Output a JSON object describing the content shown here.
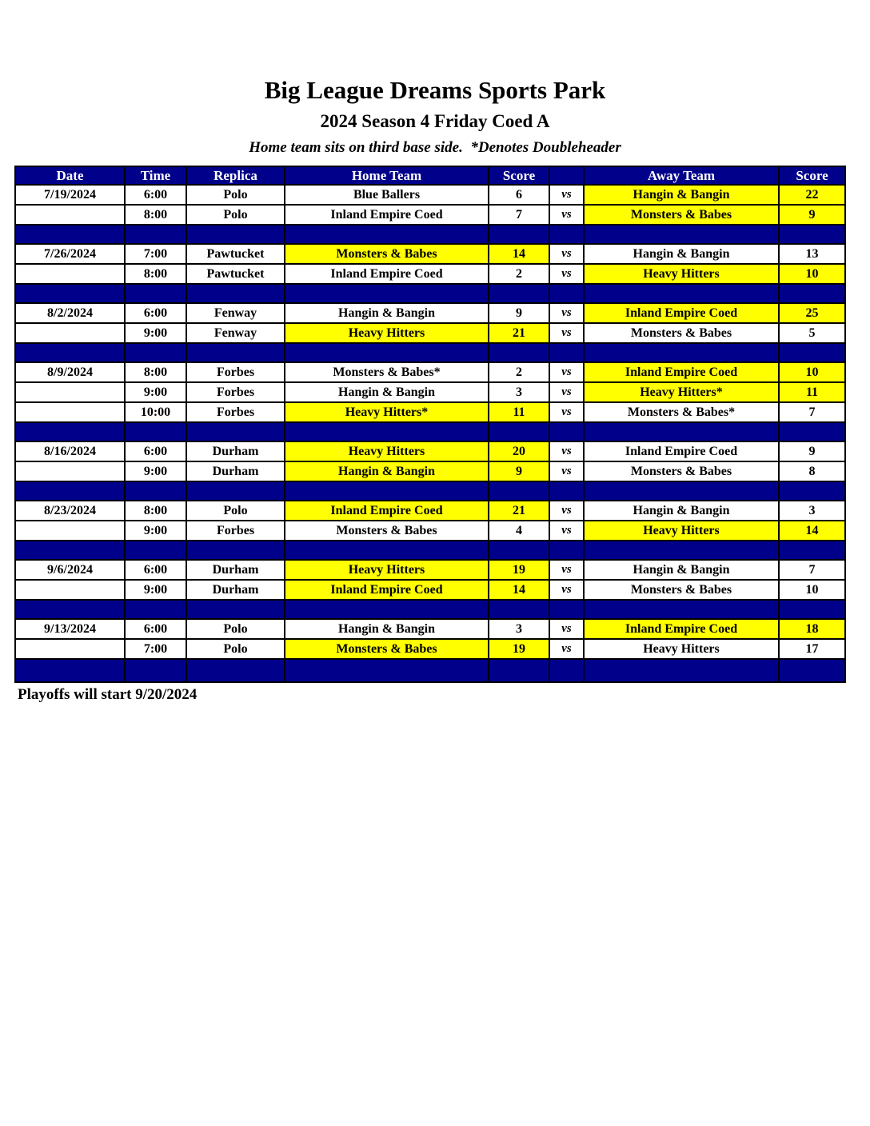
{
  "page": {
    "title": "Big League Dreams Sports Park",
    "subtitle": "2024 Season 4 Friday Coed A",
    "note": "Home team sits on third base side.  *Denotes Doubleheader",
    "footer": "Playoffs will start 9/20/2024"
  },
  "colors": {
    "navy": "#00008B",
    "highlight_yellow": "#FFFF00",
    "header_text": "#FFFFFF",
    "body_text": "#000000"
  },
  "table": {
    "headers": [
      "Date",
      "Time",
      "Replica",
      "Home Team",
      "Score",
      "",
      "Away Team",
      "Score"
    ],
    "vs_label": "vs",
    "rows": [
      {
        "type": "game",
        "date": "7/19/2024",
        "time": "6:00",
        "replica": "Polo",
        "home": "Blue Ballers",
        "home_score": "6",
        "away": "Hangin & Bangin",
        "away_score": "22",
        "winner": "away"
      },
      {
        "type": "game",
        "date": "",
        "time": "8:00",
        "replica": "Polo",
        "home": "Inland Empire Coed",
        "home_score": "7",
        "away": "Monsters & Babes",
        "away_score": "9",
        "winner": "away"
      },
      {
        "type": "separator"
      },
      {
        "type": "game",
        "date": "7/26/2024",
        "time": "7:00",
        "replica": "Pawtucket",
        "home": "Monsters & Babes",
        "home_score": "14",
        "away": "Hangin & Bangin",
        "away_score": "13",
        "winner": "home"
      },
      {
        "type": "game",
        "date": "",
        "time": "8:00",
        "replica": "Pawtucket",
        "home": "Inland Empire Coed",
        "home_score": "2",
        "away": "Heavy Hitters",
        "away_score": "10",
        "winner": "away"
      },
      {
        "type": "separator"
      },
      {
        "type": "game",
        "date": "8/2/2024",
        "time": "6:00",
        "replica": "Fenway",
        "home": "Hangin & Bangin",
        "home_score": "9",
        "away": "Inland Empire Coed",
        "away_score": "25",
        "winner": "away"
      },
      {
        "type": "game",
        "date": "",
        "time": "9:00",
        "replica": "Fenway",
        "home": "Heavy Hitters",
        "home_score": "21",
        "away": "Monsters & Babes",
        "away_score": "5",
        "winner": "home"
      },
      {
        "type": "separator"
      },
      {
        "type": "game",
        "date": "8/9/2024",
        "time": "8:00",
        "replica": "Forbes",
        "home": "Monsters & Babes*",
        "home_score": "2",
        "away": "Inland Empire Coed",
        "away_score": "10",
        "winner": "away"
      },
      {
        "type": "game",
        "date": "",
        "time": "9:00",
        "replica": "Forbes",
        "home": "Hangin & Bangin",
        "home_score": "3",
        "away": "Heavy Hitters*",
        "away_score": "11",
        "winner": "away"
      },
      {
        "type": "game",
        "date": "",
        "time": "10:00",
        "replica": "Forbes",
        "home": "Heavy Hitters*",
        "home_score": "11",
        "away": "Monsters & Babes*",
        "away_score": "7",
        "winner": "home"
      },
      {
        "type": "separator"
      },
      {
        "type": "game",
        "date": "8/16/2024",
        "time": "6:00",
        "replica": "Durham",
        "home": "Heavy Hitters",
        "home_score": "20",
        "away": "Inland Empire Coed",
        "away_score": "9",
        "winner": "home"
      },
      {
        "type": "game",
        "date": "",
        "time": "9:00",
        "replica": "Durham",
        "home": "Hangin & Bangin",
        "home_score": "9",
        "away": "Monsters & Babes",
        "away_score": "8",
        "winner": "home"
      },
      {
        "type": "separator"
      },
      {
        "type": "game",
        "date": "8/23/2024",
        "time": "8:00",
        "replica": "Polo",
        "home": "Inland Empire Coed",
        "home_score": "21",
        "away": "Hangin & Bangin",
        "away_score": "3",
        "winner": "home"
      },
      {
        "type": "game",
        "date": "",
        "time": "9:00",
        "replica": "Forbes",
        "home": "Monsters & Babes",
        "home_score": "4",
        "away": "Heavy Hitters",
        "away_score": "14",
        "winner": "away"
      },
      {
        "type": "separator"
      },
      {
        "type": "game",
        "date": "9/6/2024",
        "time": "6:00",
        "replica": "Durham",
        "home": "Heavy Hitters",
        "home_score": "19",
        "away": "Hangin & Bangin",
        "away_score": "7",
        "winner": "home"
      },
      {
        "type": "game",
        "date": "",
        "time": "9:00",
        "replica": "Durham",
        "home": "Inland Empire Coed",
        "home_score": "14",
        "away": "Monsters & Babes",
        "away_score": "10",
        "winner": "home"
      },
      {
        "type": "separator"
      },
      {
        "type": "game",
        "date": "9/13/2024",
        "time": "6:00",
        "replica": "Polo",
        "home": "Hangin & Bangin",
        "home_score": "3",
        "away": "Inland Empire Coed",
        "away_score": "18",
        "winner": "away"
      },
      {
        "type": "game",
        "date": "",
        "time": "7:00",
        "replica": "Polo",
        "home": "Monsters & Babes",
        "home_score": "19",
        "away": "Heavy Hitters",
        "away_score": "17",
        "winner": "home"
      },
      {
        "type": "separator",
        "tall": true
      }
    ]
  }
}
